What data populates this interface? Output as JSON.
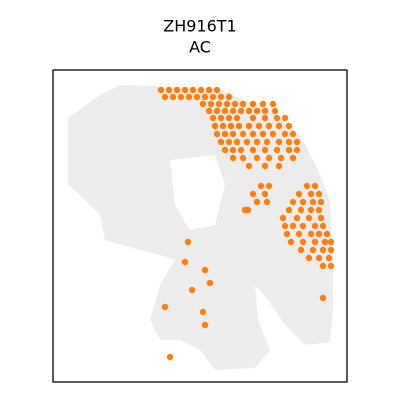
{
  "chart_data": {
    "type": "scatter",
    "title": "ZH916T1",
    "subtitle": "AC",
    "xlim": [
      0,
      294
    ],
    "ylim": [
      312,
      0
    ],
    "series": [
      {
        "name": "AC",
        "color": "#ff7f0e",
        "x": [
          108,
          116,
          124,
          132,
          140,
          148,
          156,
          164,
          112,
          120,
          128,
          136,
          144,
          152,
          160,
          168,
          176,
          150,
          158,
          166,
          174,
          182,
          190,
          200,
          210,
          220,
          156,
          164,
          172,
          180,
          188,
          196,
          204,
          212,
          222,
          160,
          168,
          176,
          184,
          200,
          212,
          224,
          232,
          162,
          170,
          178,
          186,
          196,
          206,
          216,
          226,
          236,
          164,
          172,
          180,
          190,
          200,
          210,
          220,
          232,
          240,
          168,
          176,
          184,
          194,
          204,
          214,
          226,
          236,
          244,
          172,
          180,
          188,
          200,
          212,
          224,
          236,
          244,
          180,
          190,
          204,
          216,
          228,
          240,
          196,
          212,
          226,
          208,
          216,
          254,
          262,
          200,
          212,
          246,
          258,
          266,
          204,
          214,
          240,
          250,
          260,
          268,
          192,
          236,
          248,
          258,
          266,
          230,
          244,
          256,
          268,
          232,
          240,
          250,
          262,
          270,
          234,
          246,
          258,
          266,
          274,
          238,
          250,
          262,
          272,
          278,
          248,
          260,
          270,
          278,
          256,
          266,
          276,
          270,
          278,
          135,
          132,
          152,
          157,
          139,
          112,
          150,
          152,
          117,
          270,
          195
        ],
        "values": [
          20,
          20,
          20,
          20,
          20,
          20,
          20,
          20,
          27,
          27,
          27,
          27,
          27,
          27,
          27,
          27,
          27,
          34,
          34,
          34,
          34,
          34,
          34,
          34,
          34,
          34,
          41,
          41,
          41,
          41,
          41,
          41,
          41,
          41,
          41,
          48,
          48,
          48,
          48,
          48,
          48,
          48,
          48,
          56,
          56,
          56,
          56,
          56,
          56,
          56,
          56,
          56,
          64,
          64,
          64,
          64,
          64,
          64,
          64,
          64,
          64,
          72,
          72,
          72,
          72,
          72,
          72,
          72,
          72,
          72,
          80,
          80,
          80,
          80,
          80,
          80,
          80,
          80,
          88,
          88,
          88,
          88,
          88,
          88,
          96,
          96,
          96,
          116,
          116,
          116,
          116,
          124,
          124,
          124,
          124,
          124,
          132,
          132,
          132,
          132,
          132,
          132,
          140,
          140,
          140,
          140,
          140,
          148,
          148,
          148,
          148,
          156,
          156,
          156,
          156,
          156,
          164,
          164,
          164,
          164,
          164,
          172,
          172,
          172,
          172,
          172,
          180,
          180,
          180,
          180,
          188,
          188,
          188,
          196,
          196,
          172,
          192,
          200,
          213,
          220,
          237,
          242,
          255,
          287,
          228,
          140
        ]
      }
    ]
  }
}
